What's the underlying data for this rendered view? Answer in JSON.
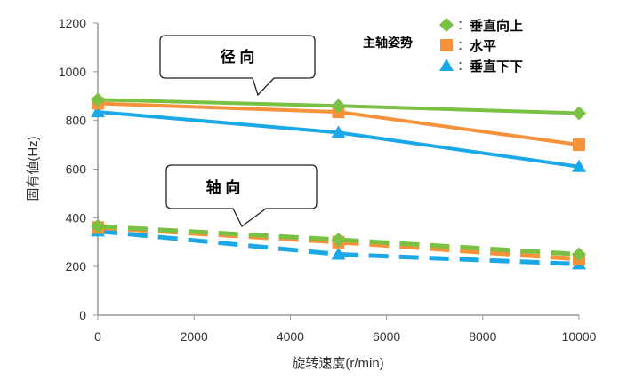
{
  "chart_data": {
    "type": "line",
    "xlabel": "旋转速度(r/min)",
    "ylabel": "固有値(Hz)",
    "xlim": [
      0,
      10000
    ],
    "ylim": [
      0,
      1200
    ],
    "xticks": [
      0,
      2000,
      4000,
      6000,
      8000,
      10000
    ],
    "yticks": [
      0,
      200,
      400,
      600,
      800,
      1000,
      1200
    ],
    "grid": false,
    "legend": {
      "title": "主轴姿势",
      "placement": "top-right"
    },
    "x": [
      0,
      5000,
      10000
    ],
    "annotations": [
      {
        "text": "径 向"
      },
      {
        "text": "轴 向"
      }
    ],
    "series": [
      {
        "name": "垂直向上",
        "group": "径 向",
        "style": "solid",
        "marker": "diamond",
        "color": "#7ac143",
        "values": [
          885,
          860,
          830
        ]
      },
      {
        "name": "水平",
        "group": "径 向",
        "style": "solid",
        "marker": "square",
        "color": "#f7923a",
        "values": [
          870,
          835,
          700
        ]
      },
      {
        "name": "垂直下下",
        "group": "径 向",
        "style": "solid",
        "marker": "triangle",
        "color": "#1ba8e6",
        "values": [
          835,
          750,
          610
        ]
      },
      {
        "name": "垂直向上",
        "group": "轴 向",
        "style": "dashed",
        "marker": "diamond",
        "color": "#7ac143",
        "values": [
          365,
          310,
          250
        ]
      },
      {
        "name": "水平",
        "group": "轴 向",
        "style": "dashed",
        "marker": "square",
        "color": "#f7923a",
        "values": [
          360,
          300,
          230
        ]
      },
      {
        "name": "垂直下下",
        "group": "轴 向",
        "style": "dashed",
        "marker": "triangle",
        "color": "#1ba8e6",
        "values": [
          345,
          250,
          210
        ]
      }
    ]
  }
}
